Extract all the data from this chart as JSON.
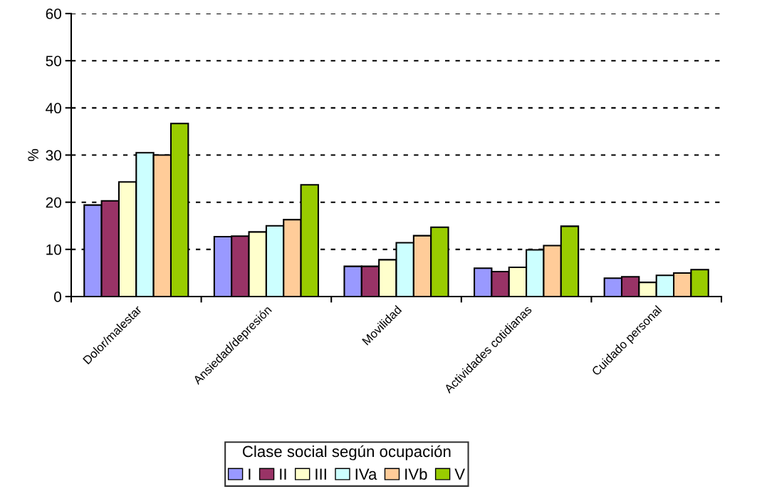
{
  "chart_data": {
    "type": "bar",
    "ylabel": "%",
    "legend_title": "Clase social según ocupación",
    "legend": "bottom",
    "grid": "y",
    "line_style": "dashed",
    "categories": [
      "Dolor/malestar",
      "Ansiedad/depresión",
      "Movilidad",
      "Actividades cotidianas",
      "Cuidado personal"
    ],
    "ylim": [
      0,
      60
    ],
    "yticks": [
      0,
      10,
      20,
      30,
      40,
      50,
      60
    ],
    "series": [
      {
        "name": "I",
        "color": "#9999ff",
        "values": [
          19.4,
          12.7,
          6.4,
          6.0,
          3.9
        ]
      },
      {
        "name": "II",
        "color": "#993366",
        "values": [
          20.3,
          12.8,
          6.4,
          5.3,
          4.2
        ]
      },
      {
        "name": "III",
        "color": "#ffffcc",
        "values": [
          24.3,
          13.7,
          7.8,
          6.2,
          3.0
        ]
      },
      {
        "name": "IVa",
        "color": "#ccffff",
        "values": [
          30.5,
          15.0,
          11.4,
          9.9,
          4.5
        ]
      },
      {
        "name": "IVb",
        "color": "#ffcc99",
        "values": [
          30.0,
          16.3,
          12.9,
          10.8,
          5.0
        ]
      },
      {
        "name": "V",
        "color": "#99cc00",
        "values": [
          36.7,
          23.7,
          14.7,
          14.9,
          5.7
        ]
      }
    ]
  }
}
